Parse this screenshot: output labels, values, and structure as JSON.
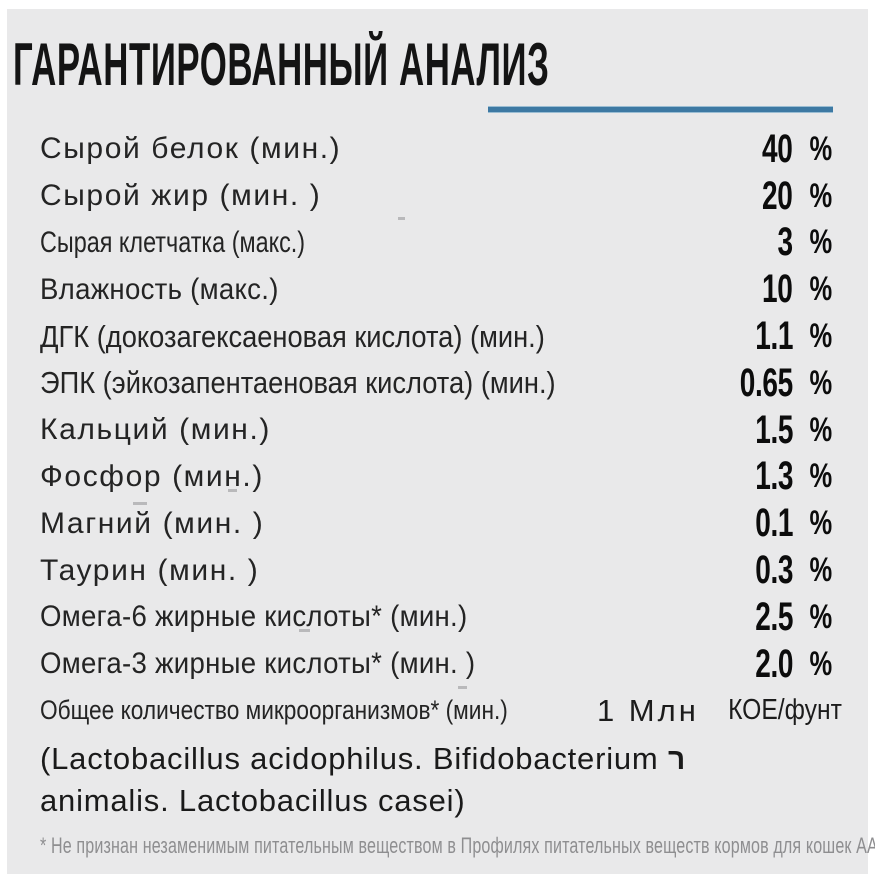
{
  "accent_color": "#3d79a3",
  "header": {
    "title": "ГАРАНТИРОВАННЫЙ АНАЛИЗ"
  },
  "analysis": {
    "rows": [
      {
        "label": "Сырой белок (мин.)",
        "value": "40",
        "unit": "%",
        "label_style": "wide"
      },
      {
        "label": "Сырой жир (мин. )",
        "value": "20",
        "unit": "%",
        "label_style": "wide"
      },
      {
        "label": "Сырая клетчатка (макс.)",
        "value": "3",
        "unit": "%",
        "label_style": "cond"
      },
      {
        "label": "Влажность (макс.)",
        "value": "10",
        "unit": "%",
        "label_style": "semi"
      },
      {
        "label": "ДГК (докозагексаеновая кислота) (мин.)",
        "value": "1.1",
        "unit": "%",
        "label_style": "condL"
      },
      {
        "label": "ЭПК (эйкозапентаеновая кислота) (мин.)",
        "value": "0.65",
        "unit": "%",
        "label_style": "condL"
      },
      {
        "label": "Кальций (мин.)",
        "value": "1.5",
        "unit": "%",
        "label_style": "wide"
      },
      {
        "label": "Фосфор (мин.)",
        "value": "1.3",
        "unit": "%",
        "label_style": "wide"
      },
      {
        "label": "Магний (мин. )",
        "value": "0.1",
        "unit": "%",
        "label_style": "wide"
      },
      {
        "label": "Таурин (мин. )",
        "value": "0.3",
        "unit": "%",
        "label_style": "wide"
      },
      {
        "label": "Омега-6 жирные кислоты* (мин.)",
        "value": "2.5",
        "unit": "%",
        "label_style": "semi"
      },
      {
        "label": "Омега-3 жирные кислоты* (мин. )",
        "value": "2.0",
        "unit": "%",
        "label_style": "semi"
      },
      {
        "label": "Общее количество микроорганизмов* (мин.)",
        "value": "1 Млн",
        "unit": "КОЕ/фунт",
        "label_style": "condS",
        "value_style": "text",
        "unit_style": "text"
      }
    ]
  },
  "bacteria_note": {
    "line1": "(Lactobacillus acidophilus. Bifidobacterium",
    "mark": "ר",
    "line2": "animalis. Lactobacillus casei)"
  },
  "footnote": "* Не признан незаменимым питательным веществом в Профилях питательных веществ кормов для кошек AAFCO"
}
